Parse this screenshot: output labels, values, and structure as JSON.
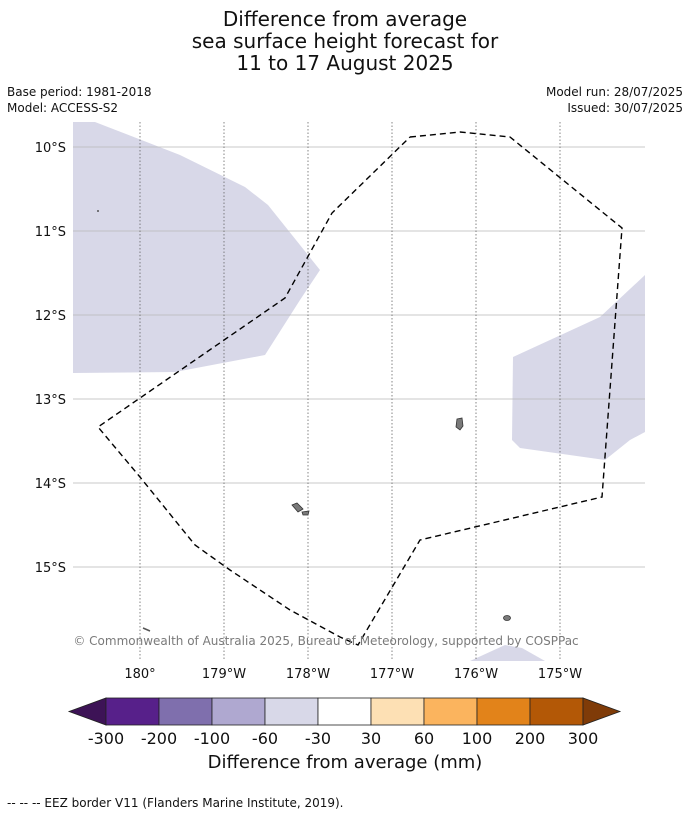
{
  "title": {
    "line1": "Difference from average",
    "line2": "sea surface height forecast for",
    "line3": "11 to 17 August 2025"
  },
  "meta": {
    "base_period": "Base period: 1981-2018",
    "model": "Model: ACCESS-S2",
    "model_run": "Model run: 28/07/2025",
    "issued": "Issued: 30/07/2025"
  },
  "map": {
    "lat_labels": [
      "10°S",
      "11°S",
      "12°S",
      "13°S",
      "14°S",
      "15°S"
    ],
    "lon_labels": [
      "180°",
      "179°W",
      "178°W",
      "177°W",
      "176°W",
      "175°W"
    ],
    "copyright": "© Commonwealth of Australia 2025, Bureau of Meteorology, supported by COSPPac",
    "anomaly_fill_color": "#d8d8e8",
    "land_color": "#7a7a7a"
  },
  "colorbar": {
    "ticks": [
      "-300",
      "-200",
      "-100",
      "-60",
      "-30",
      "30",
      "60",
      "100",
      "200",
      "300"
    ],
    "colors": [
      "#3d1356",
      "#57208a",
      "#7f6fad",
      "#afa8d0",
      "#d8d8e8",
      "#ffffff",
      "#fde0b4",
      "#fbb45e",
      "#e2831a",
      "#b35806",
      "#7f3b08"
    ],
    "label": "Difference from average (mm)"
  },
  "footnote": "--  --  -- EEZ border V11 (Flanders Marine Institute, 2019)."
}
